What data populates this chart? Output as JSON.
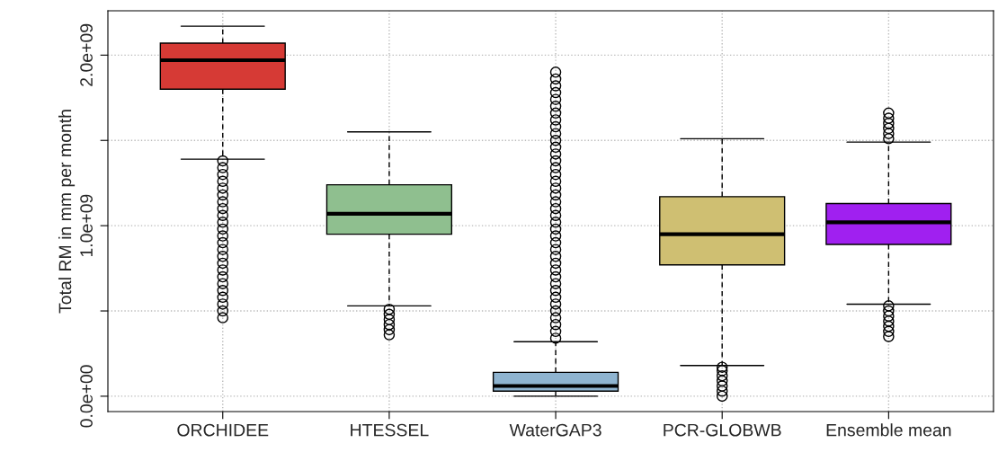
{
  "chart_data": {
    "type": "box",
    "ylabel": "Total RM in mm per month",
    "categories": [
      "ORCHIDEE",
      "HTESSEL",
      "WaterGAP3",
      "PCR-GLOBWB",
      "Ensemble mean"
    ],
    "colors": [
      "#d63a35",
      "#8fbf8f",
      "#8fb4d0",
      "#cfbf72",
      "#a020f0"
    ],
    "boxes": [
      {
        "low": 1390000000.0,
        "q1": 1800000000.0,
        "median": 1970000000.0,
        "q3": 2070000000.0,
        "high": 2170000000.0,
        "outliers": [
          460000000.0,
          500000000.0,
          540000000.0,
          580000000.0,
          620000000.0,
          660000000.0,
          700000000.0,
          740000000.0,
          780000000.0,
          820000000.0,
          860000000.0,
          900000000.0,
          940000000.0,
          980000000.0,
          1020000000.0,
          1060000000.0,
          1100000000.0,
          1140000000.0,
          1180000000.0,
          1220000000.0,
          1260000000.0,
          1300000000.0,
          1340000000.0,
          1380000000.0
        ]
      },
      {
        "low": 530000000.0,
        "q1": 950000000.0,
        "median": 1070000000.0,
        "q3": 1240000000.0,
        "high": 1550000000.0,
        "outliers": [
          360000000.0,
          390000000.0,
          420000000.0,
          450000000.0,
          480000000.0,
          510000000.0
        ]
      },
      {
        "low": 0.0,
        "q1": 30000000.0,
        "median": 60000000.0,
        "q3": 140000000.0,
        "high": 320000000.0,
        "outliers": [
          340000000.0,
          380000000.0,
          420000000.0,
          460000000.0,
          500000000.0,
          540000000.0,
          580000000.0,
          620000000.0,
          660000000.0,
          700000000.0,
          740000000.0,
          780000000.0,
          820000000.0,
          860000000.0,
          900000000.0,
          940000000.0,
          980000000.0,
          1020000000.0,
          1060000000.0,
          1100000000.0,
          1140000000.0,
          1180000000.0,
          1220000000.0,
          1260000000.0,
          1300000000.0,
          1340000000.0,
          1380000000.0,
          1420000000.0,
          1460000000.0,
          1500000000.0,
          1540000000.0,
          1580000000.0,
          1620000000.0,
          1660000000.0,
          1700000000.0,
          1740000000.0,
          1780000000.0,
          1820000000.0,
          1860000000.0,
          1900000000.0
        ]
      },
      {
        "low": 180000000.0,
        "q1": 770000000.0,
        "median": 950000000.0,
        "q3": 1170000000.0,
        "high": 1510000000.0,
        "outliers": [
          0.0,
          30000000.0,
          60000000.0,
          90000000.0,
          120000000.0,
          150000000.0,
          170000000.0
        ]
      },
      {
        "low": 540000000.0,
        "q1": 890000000.0,
        "median": 1020000000.0,
        "q3": 1130000000.0,
        "high": 1490000000.0,
        "outliers": [
          350000000.0,
          380000000.0,
          410000000.0,
          440000000.0,
          470000000.0,
          500000000.0,
          530000000.0,
          1510000000.0,
          1540000000.0,
          1570000000.0,
          1600000000.0,
          1630000000.0,
          1660000000.0
        ]
      }
    ],
    "ylim": [
      -90000000.0,
      2260000000.0
    ],
    "yticks": [
      {
        "value": 0,
        "label": "0.0e+00"
      },
      {
        "value": 500000000.0,
        "label": null
      },
      {
        "value": 1000000000.0,
        "label": "1.0e+09"
      },
      {
        "value": 1500000000.0,
        "label": null
      },
      {
        "value": 2000000000.0,
        "label": "2.0e+09"
      }
    ],
    "grid": true
  }
}
